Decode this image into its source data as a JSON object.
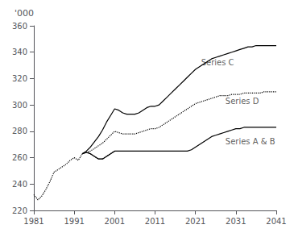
{
  "chart_data": {
    "type": "line",
    "ylabel": "'000",
    "xlim": [
      1981,
      2041
    ],
    "ylim": [
      220,
      360
    ],
    "xticks": [
      1981,
      1991,
      2001,
      2011,
      2021,
      2031,
      2041
    ],
    "yticks": [
      220,
      240,
      260,
      280,
      300,
      320,
      340,
      360
    ],
    "grid": false,
    "series": [
      {
        "color": "#000000",
        "line_style": "dotted",
        "x": [
          1981,
          1982,
          1983,
          1984,
          1985,
          1986,
          1987,
          1988,
          1989,
          1990,
          1991,
          1992,
          1993,
          1994,
          1995,
          1996,
          1997,
          1998,
          1999,
          2000,
          2001
        ],
        "values": [
          232,
          228,
          231,
          236,
          242,
          249,
          251,
          253,
          255,
          258,
          260,
          258,
          263,
          264,
          263,
          261,
          259,
          259,
          261,
          263,
          265
        ]
      },
      {
        "color": "#000000",
        "line_style": "solid",
        "x": [
          1993,
          1994,
          1995,
          1996,
          1997,
          1998,
          1999,
          2000,
          2001,
          2002,
          2003,
          2004,
          2005,
          2006,
          2007,
          2008,
          2009,
          2010,
          2011,
          2012,
          2013,
          2014,
          2015,
          2016,
          2017,
          2018,
          2019,
          2020,
          2021,
          2022,
          2023,
          2024,
          2025,
          2026,
          2027,
          2028,
          2029,
          2030,
          2031,
          2032,
          2033,
          2034,
          2035,
          2036,
          2037,
          2038,
          2039,
          2040,
          2041
        ],
        "values": [
          263,
          264,
          263,
          261,
          259,
          259,
          261,
          263,
          265,
          265,
          265,
          265,
          265,
          265,
          265,
          265,
          265,
          265,
          265,
          265,
          265,
          265,
          265,
          265,
          265,
          265,
          265,
          266,
          268,
          270,
          272,
          274,
          276,
          277,
          278,
          279,
          280,
          281,
          282,
          282,
          283,
          283,
          283,
          283,
          283,
          283,
          283,
          283,
          283
        ]
      },
      {
        "color": "#000000",
        "line_style": "solid",
        "x": [
          1993,
          1994,
          1995,
          1996,
          1997,
          1998,
          1999,
          2000,
          2001,
          2002,
          2003,
          2004,
          2005,
          2006,
          2007,
          2008,
          2009,
          2010,
          2011,
          2012,
          2013,
          2014,
          2015,
          2016,
          2017,
          2018,
          2019,
          2020,
          2021,
          2022,
          2023,
          2024,
          2025,
          2026,
          2027,
          2028,
          2029,
          2030,
          2031,
          2032,
          2033,
          2034,
          2035,
          2036,
          2037,
          2038,
          2039,
          2040,
          2041
        ],
        "values": [
          263,
          265,
          268,
          272,
          276,
          281,
          287,
          292,
          297,
          296,
          294,
          293,
          293,
          293,
          294,
          296,
          298,
          299,
          299,
          300,
          303,
          306,
          309,
          312,
          315,
          318,
          321,
          324,
          327,
          329,
          331,
          333,
          335,
          336,
          337,
          338,
          339,
          340,
          341,
          342,
          343,
          344,
          344,
          345,
          345,
          345,
          345,
          345,
          345
        ]
      },
      {
        "color": "#000000",
        "line_style": "dotted",
        "x": [
          1993,
          1994,
          1995,
          1996,
          1997,
          1998,
          1999,
          2000,
          2001,
          2002,
          2003,
          2004,
          2005,
          2006,
          2007,
          2008,
          2009,
          2010,
          2011,
          2012,
          2013,
          2014,
          2015,
          2016,
          2017,
          2018,
          2019,
          2020,
          2021,
          2022,
          2023,
          2024,
          2025,
          2026,
          2027,
          2028,
          2029,
          2030,
          2031,
          2032,
          2033,
          2034,
          2035,
          2036,
          2037,
          2038,
          2039,
          2040,
          2041
        ],
        "values": [
          263,
          264,
          265,
          267,
          269,
          271,
          274,
          277,
          280,
          279,
          278,
          278,
          278,
          278,
          279,
          280,
          281,
          282,
          282,
          283,
          285,
          287,
          289,
          291,
          293,
          295,
          297,
          299,
          301,
          302,
          303,
          304,
          305,
          306,
          307,
          307,
          307,
          308,
          308,
          308,
          309,
          309,
          309,
          309,
          309,
          310,
          310,
          310,
          310
        ]
      }
    ],
    "annotations": [
      {
        "text": "Series C",
        "x": 2022,
        "y": 329
      },
      {
        "text": "Series D",
        "x": 2028,
        "y": 303
      },
      {
        "text": "Series A & B",
        "x": 2028,
        "y": 272
      }
    ]
  }
}
